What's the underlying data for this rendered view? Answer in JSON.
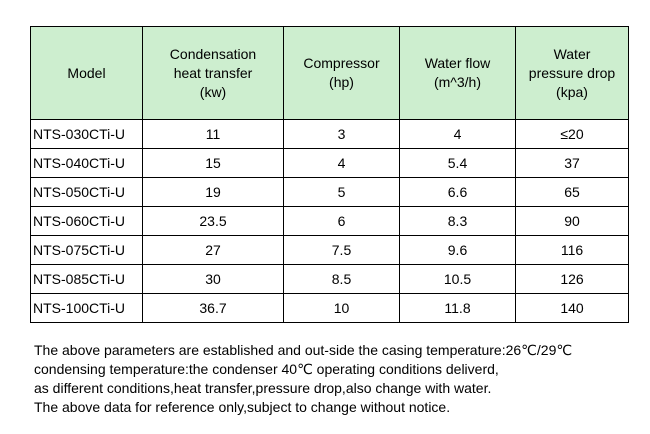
{
  "table": {
    "headers": [
      {
        "lines": [
          "Model"
        ]
      },
      {
        "lines": [
          "Condensation",
          "heat transfer",
          "(kw)"
        ]
      },
      {
        "lines": [
          "Compressor",
          "(hp)"
        ]
      },
      {
        "lines": [
          "Water flow",
          "(m^3/h)"
        ]
      },
      {
        "lines": [
          "Water",
          "pressure drop",
          "(kpa)"
        ]
      }
    ],
    "rows": [
      [
        "NTS-030CTi-U",
        "11",
        "3",
        "4",
        "≤20"
      ],
      [
        "NTS-040CTi-U",
        "15",
        "4",
        "5.4",
        "37"
      ],
      [
        "NTS-050CTi-U",
        "19",
        "5",
        "6.6",
        "65"
      ],
      [
        "NTS-060CTi-U",
        "23.5",
        "6",
        "8.3",
        "90"
      ],
      [
        "NTS-075CTi-U",
        "27",
        "7.5",
        "9.6",
        "116"
      ],
      [
        "NTS-085CTi-U",
        "30",
        "8.5",
        "10.5",
        "126"
      ],
      [
        "NTS-100CTi-U",
        "36.7",
        "10",
        "11.8",
        "140"
      ]
    ],
    "header_background": "#cdeecf"
  },
  "notes": [
    "The above parameters are established and out-side the casing temperature:26℃/29℃",
    "condensing temperature:the condenser 40℃ operating conditions deliverd,",
    "as different conditions,heat transfer,pressure drop,also change with water.",
    "The above data for reference only,subject to change without notice."
  ]
}
